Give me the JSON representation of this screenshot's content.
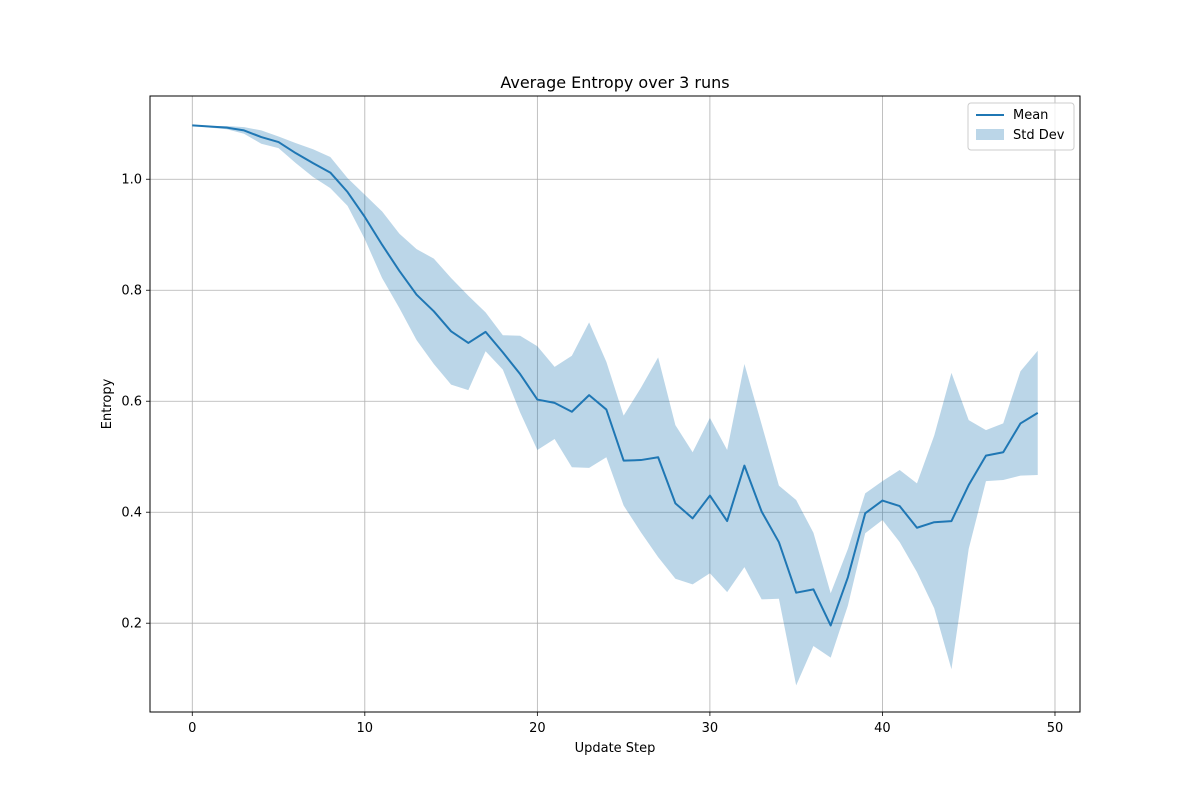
{
  "chart_data": {
    "type": "line",
    "title": "Average Entropy over 3 runs",
    "xlabel": "Update Step",
    "ylabel": "Entropy",
    "xlim": [
      -2.45,
      51.45
    ],
    "ylim": [
      0.04,
      1.15
    ],
    "xticks": [
      0,
      10,
      20,
      30,
      40,
      50
    ],
    "yticks": [
      0.2,
      0.4,
      0.6,
      0.8,
      1.0
    ],
    "xtick_labels": [
      "0",
      "10",
      "20",
      "30",
      "40",
      "50"
    ],
    "ytick_labels": [
      "0.2",
      "0.4",
      "0.6",
      "0.8",
      "1.0"
    ],
    "grid": true,
    "legend_position": "top-right",
    "colors": {
      "mean": "#1f77b4",
      "band": "#1f77b4",
      "band_opacity": 0.3
    },
    "x": [
      0,
      1,
      2,
      3,
      4,
      5,
      6,
      7,
      8,
      9,
      10,
      11,
      12,
      13,
      14,
      15,
      16,
      17,
      18,
      19,
      20,
      21,
      22,
      23,
      24,
      25,
      26,
      27,
      28,
      29,
      30,
      31,
      32,
      33,
      34,
      35,
      36,
      37,
      38,
      39,
      40,
      41,
      42,
      43,
      44,
      45,
      46,
      47,
      48,
      49
    ],
    "series": [
      {
        "name": "Mean",
        "kind": "line",
        "values": [
          1.097,
          1.095,
          1.093,
          1.088,
          1.076,
          1.067,
          1.047,
          1.029,
          1.012,
          0.977,
          0.932,
          0.882,
          0.835,
          0.792,
          0.762,
          0.726,
          0.705,
          0.725,
          0.688,
          0.649,
          0.603,
          0.597,
          0.581,
          0.611,
          0.585,
          0.493,
          0.494,
          0.499,
          0.416,
          0.389,
          0.43,
          0.384,
          0.484,
          0.401,
          0.346,
          0.255,
          0.261,
          0.196,
          0.283,
          0.398,
          0.421,
          0.411,
          0.372,
          0.382,
          0.384,
          0.449,
          0.502,
          0.508,
          0.56,
          0.579
        ]
      },
      {
        "name": "Std Dev",
        "kind": "band",
        "upper": [
          1.097,
          1.096,
          1.096,
          1.094,
          1.088,
          1.077,
          1.065,
          1.054,
          1.04,
          1.002,
          0.972,
          0.942,
          0.902,
          0.874,
          0.857,
          0.822,
          0.79,
          0.76,
          0.719,
          0.718,
          0.699,
          0.662,
          0.682,
          0.742,
          0.671,
          0.574,
          0.624,
          0.679,
          0.557,
          0.508,
          0.57,
          0.512,
          0.667,
          0.558,
          0.448,
          0.422,
          0.363,
          0.254,
          0.334,
          0.434,
          0.456,
          0.476,
          0.452,
          0.538,
          0.651,
          0.566,
          0.548,
          0.56,
          0.654,
          0.691
        ],
        "lower": [
          1.097,
          1.093,
          1.09,
          1.082,
          1.064,
          1.056,
          1.029,
          1.004,
          0.984,
          0.952,
          0.892,
          0.822,
          0.768,
          0.71,
          0.667,
          0.63,
          0.62,
          0.69,
          0.657,
          0.58,
          0.512,
          0.532,
          0.481,
          0.48,
          0.499,
          0.412,
          0.364,
          0.319,
          0.28,
          0.27,
          0.29,
          0.256,
          0.301,
          0.243,
          0.244,
          0.088,
          0.159,
          0.138,
          0.232,
          0.362,
          0.386,
          0.346,
          0.292,
          0.227,
          0.117,
          0.334,
          0.456,
          0.458,
          0.466,
          0.467
        ]
      }
    ]
  }
}
